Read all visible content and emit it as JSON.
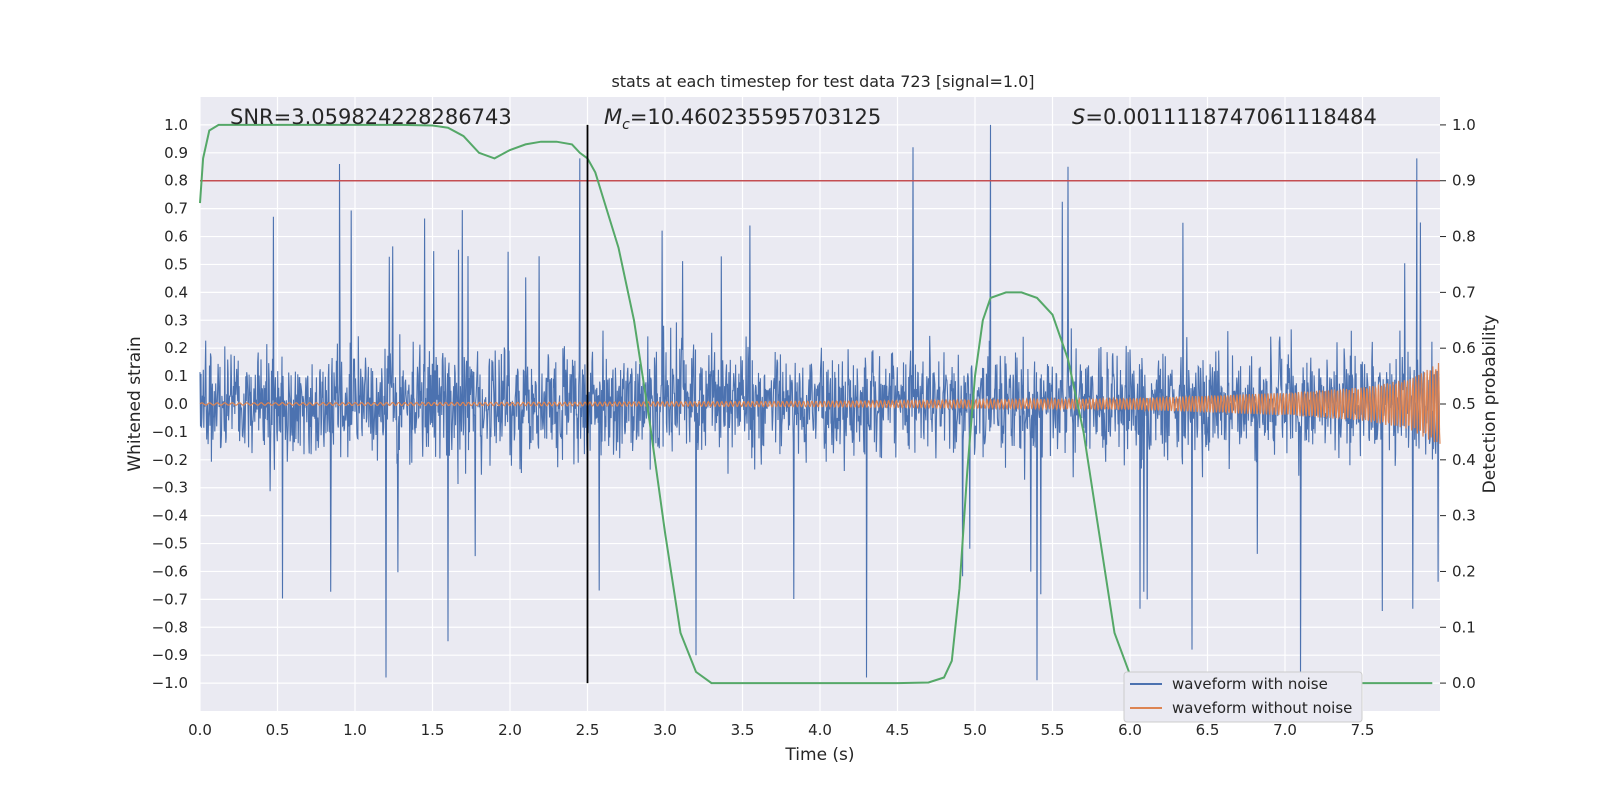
{
  "chart_data": {
    "type": "line",
    "title": "stats at each timestep for test data 723 [signal=1.0]",
    "xlabel": "Time (s)",
    "ylabel": "Whitened strain",
    "y2label": "Detection probability",
    "xlim": [
      0,
      8
    ],
    "ylim": [
      -1.1,
      1.1
    ],
    "y2lim": [
      -0.05,
      1.05
    ],
    "x_ticks": [
      "0.0",
      "0.5",
      "1.0",
      "1.5",
      "2.0",
      "2.5",
      "3.0",
      "3.5",
      "4.0",
      "4.5",
      "5.0",
      "5.5",
      "6.0",
      "6.5",
      "7.0",
      "7.5"
    ],
    "y_ticks": [
      "1.0",
      "0.9",
      "0.8",
      "0.7",
      "0.6",
      "0.5",
      "0.4",
      "0.3",
      "0.2",
      "0.1",
      "0.0",
      "-0.1",
      "-0.2",
      "-0.3",
      "-0.4",
      "-0.5",
      "-0.6",
      "-0.7",
      "-0.8",
      "-0.9",
      "-1.0"
    ],
    "y2_ticks": [
      "1.0",
      "0.9",
      "0.8",
      "0.7",
      "0.6",
      "0.5",
      "0.4",
      "0.3",
      "0.2",
      "0.1",
      "0.0"
    ],
    "grid": true,
    "legend_position": "lower right",
    "colors": {
      "noisy": "#4c72b0",
      "clean": "#dd8452",
      "probability": "#55a868",
      "threshold": "#c44e52",
      "marker": "#000000",
      "plot_bg": "#eaeaf2",
      "grid": "#ffffff"
    },
    "annotations": {
      "snr": "SNR=3.059824228286743",
      "mc_var": "M",
      "mc_sub": "c",
      "mc_value": "=10.460235595703125",
      "s_var": "S",
      "s_value": "=0.0011118747061118484"
    },
    "threshold": {
      "axis": "y2",
      "y": 0.9
    },
    "marker_line": {
      "x": 2.5,
      "y_range": [
        -1.0,
        1.0
      ]
    },
    "series": [
      {
        "name": "waveform with noise",
        "style": "dense noise, approx. +/-0.45 envelope with spikes to about +/-1.0",
        "spike_x": [
          0.9,
          1.2,
          1.6,
          2.45,
          3.2,
          4.3,
          4.6,
          5.1,
          5.4,
          5.6,
          6.4,
          7.1,
          7.85
        ],
        "spike_y": [
          0.86,
          -0.98,
          -0.85,
          0.88,
          -0.9,
          -0.98,
          0.92,
          1.0,
          -0.99,
          0.85,
          -0.88,
          -0.99,
          0.88
        ]
      },
      {
        "name": "waveform without noise",
        "style": "chirp, amplitude grows toward the end",
        "amplitude_x": [
          0.0,
          2.0,
          4.0,
          6.0,
          7.0,
          7.5,
          7.8,
          8.0
        ],
        "amplitude_y": [
          0.004,
          0.006,
          0.01,
          0.02,
          0.04,
          0.06,
          0.09,
          0.15
        ]
      },
      {
        "name": "detection probability",
        "axis": "y2",
        "x": [
          0.0,
          0.02,
          0.06,
          0.12,
          0.3,
          0.6,
          1.0,
          1.3,
          1.5,
          1.6,
          1.7,
          1.8,
          1.9,
          2.0,
          2.1,
          2.2,
          2.3,
          2.4,
          2.45,
          2.5,
          2.55,
          2.6,
          2.7,
          2.8,
          2.9,
          3.0,
          3.1,
          3.2,
          3.3,
          3.5,
          4.0,
          4.5,
          4.7,
          4.8,
          4.85,
          4.9,
          4.95,
          5.0,
          5.05,
          5.1,
          5.2,
          5.3,
          5.4,
          5.5,
          5.6,
          5.7,
          5.8,
          5.9,
          6.0,
          6.1,
          6.5,
          7.0,
          7.5,
          7.95
        ],
        "y": [
          0.86,
          0.94,
          0.99,
          1.0,
          1.0,
          1.0,
          1.0,
          1.0,
          0.999,
          0.995,
          0.98,
          0.95,
          0.94,
          0.955,
          0.965,
          0.97,
          0.97,
          0.965,
          0.95,
          0.94,
          0.915,
          0.87,
          0.78,
          0.65,
          0.47,
          0.27,
          0.09,
          0.02,
          0.0,
          0.0,
          0.0,
          0.0,
          0.001,
          0.01,
          0.04,
          0.17,
          0.38,
          0.55,
          0.65,
          0.69,
          0.7,
          0.7,
          0.69,
          0.66,
          0.58,
          0.45,
          0.27,
          0.09,
          0.015,
          0.0,
          0.0,
          0.0,
          0.0,
          0.0
        ]
      }
    ]
  }
}
